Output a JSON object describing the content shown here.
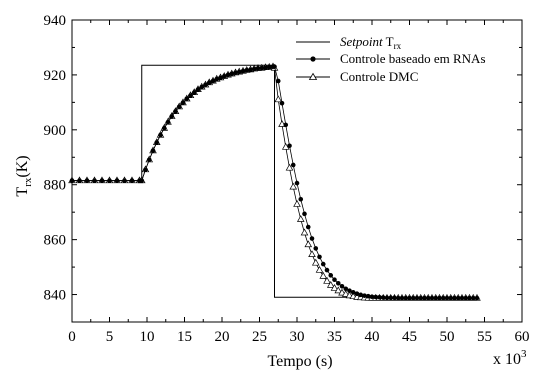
{
  "chart_data": {
    "type": "line",
    "xlabel": "Tempo (s)",
    "x_multiplier": "x 10",
    "x_multiplier_exp": "3",
    "ylabel_main": "T",
    "ylabel_sub": "rx",
    "ylabel_unit": "(K)",
    "xlim": [
      0,
      60
    ],
    "ylim": [
      830,
      940
    ],
    "xticks": [
      0,
      5,
      10,
      15,
      20,
      25,
      30,
      35,
      40,
      45,
      50,
      55,
      60
    ],
    "yticks": [
      840,
      860,
      880,
      900,
      920,
      940
    ],
    "grid": false,
    "legend_position": "top-right",
    "series": [
      {
        "name_italic": "Setpoint",
        "name_main": " T",
        "name_sub": "rx",
        "style": "solid-line",
        "x": [
          0,
          9.3,
          9.3,
          27.0,
          27.0,
          54
        ],
        "y": [
          881.5,
          881.5,
          923.5,
          923.5,
          839,
          839
        ]
      },
      {
        "name": "Controle baseado em RNAs",
        "style": "line-filled-circle",
        "x": [
          0,
          1,
          2,
          3,
          4,
          5,
          6,
          7,
          8,
          9,
          9.3,
          9.8,
          10.3,
          10.8,
          11.3,
          11.8,
          12.3,
          12.8,
          13.3,
          13.8,
          14.3,
          14.8,
          15.3,
          15.8,
          16.3,
          16.8,
          17.3,
          17.8,
          18.3,
          18.8,
          19.3,
          19.8,
          20.3,
          20.8,
          21.3,
          21.8,
          22.3,
          22.8,
          23.3,
          23.8,
          24.3,
          24.8,
          25.3,
          25.8,
          26.3,
          26.8,
          27.0,
          27.5,
          28.0,
          28.5,
          29.0,
          29.5,
          30.0,
          30.5,
          31.0,
          31.5,
          32.0,
          32.5,
          33.0,
          33.5,
          34.0,
          34.5,
          35.0,
          35.5,
          36.0,
          36.5,
          37.0,
          37.5,
          38.0,
          38.5,
          39.0,
          39.5,
          40.0,
          40.5,
          41.0,
          41.5,
          42.0,
          42.5,
          43.0,
          43.5,
          44.0,
          44.5,
          45.0,
          45.5,
          46.0,
          46.5,
          47.0,
          47.5,
          48.0,
          48.5,
          49.0,
          49.5,
          50.0,
          50.5,
          51.0,
          51.5,
          52.0,
          52.5,
          53.0,
          53.5,
          54.0
        ],
        "y": [
          881.5,
          881.5,
          881.5,
          881.5,
          881.5,
          881.5,
          881.5,
          881.5,
          881.5,
          881.5,
          881.5,
          885.5,
          889.1,
          892.4,
          895.4,
          898.1,
          900.6,
          902.8,
          904.9,
          906.7,
          908.4,
          909.9,
          911.3,
          912.5,
          913.6,
          914.7,
          915.6,
          916.4,
          917.2,
          917.8,
          918.5,
          919.0,
          919.5,
          920.0,
          920.4,
          920.8,
          921.1,
          921.4,
          921.7,
          921.9,
          922.2,
          922.4,
          922.5,
          922.7,
          922.8,
          923.0,
          923.0,
          917.8,
          909.7,
          901.8,
          894.2,
          887.2,
          880.6,
          874.7,
          869.4,
          864.6,
          860.4,
          856.8,
          853.7,
          851.1,
          848.9,
          847.0,
          845.4,
          844.1,
          843.0,
          842.1,
          841.4,
          840.8,
          840.3,
          839.9,
          839.6,
          839.4,
          839.2,
          839.1,
          839.0,
          838.9,
          838.8,
          838.8,
          838.8,
          838.7,
          838.7,
          838.7,
          838.7,
          838.7,
          838.7,
          838.7,
          838.7,
          838.7,
          838.7,
          838.7,
          838.7,
          838.7,
          838.7,
          838.7,
          838.7,
          838.7,
          838.7,
          838.7,
          838.7,
          838.7,
          838.7
        ]
      },
      {
        "name": "Controle DMC",
        "style": "line-open-triangle",
        "x": [
          0,
          1,
          2,
          3,
          4,
          5,
          6,
          7,
          8,
          9,
          9.3,
          9.8,
          10.3,
          10.8,
          11.3,
          11.8,
          12.3,
          12.8,
          13.3,
          13.8,
          14.3,
          14.8,
          15.3,
          15.8,
          16.3,
          16.8,
          17.3,
          17.8,
          18.3,
          18.8,
          19.3,
          19.8,
          20.3,
          20.8,
          21.3,
          21.8,
          22.3,
          22.8,
          23.3,
          23.8,
          24.3,
          24.8,
          25.3,
          25.8,
          26.3,
          26.8,
          27.0,
          27.5,
          28.0,
          28.5,
          29.0,
          29.5,
          30.0,
          30.5,
          31.0,
          31.5,
          32.0,
          32.5,
          33.0,
          33.5,
          34.0,
          34.5,
          35.0,
          35.5,
          36.0,
          36.5,
          37.0,
          37.5,
          38.0,
          38.5,
          39.0,
          39.5,
          40.0,
          40.5,
          41.0,
          41.5,
          42.0,
          42.5,
          43.0,
          43.5,
          44.0,
          44.5,
          45.0,
          45.5,
          46.0,
          46.5,
          47.0,
          47.5,
          48.0,
          48.5,
          49.0,
          49.5,
          50.0,
          50.5,
          51.0,
          51.5,
          52.0,
          52.5,
          53.0,
          53.5,
          54.0
        ],
        "y": [
          881.5,
          881.5,
          881.5,
          881.5,
          881.5,
          881.5,
          881.5,
          881.5,
          881.5,
          881.5,
          881.5,
          885.5,
          889.1,
          892.4,
          895.4,
          898.1,
          900.6,
          902.8,
          904.9,
          906.7,
          908.4,
          909.9,
          911.3,
          912.5,
          913.6,
          914.7,
          915.6,
          916.4,
          917.2,
          917.8,
          918.5,
          919.0,
          919.5,
          920.0,
          920.4,
          920.8,
          921.1,
          921.4,
          921.7,
          921.9,
          922.2,
          922.4,
          922.5,
          922.7,
          922.8,
          923.0,
          922.5,
          911.0,
          902.0,
          893.7,
          886.1,
          879.2,
          872.9,
          867.4,
          862.5,
          858.2,
          854.6,
          851.5,
          848.9,
          846.7,
          844.9,
          843.4,
          842.3,
          841.4,
          840.6,
          840.1,
          839.6,
          839.3,
          839.0,
          838.9,
          838.8,
          838.7,
          838.7,
          838.7,
          838.7,
          838.7,
          838.7,
          838.7,
          838.7,
          838.7,
          838.7,
          838.7,
          838.7,
          838.7,
          838.7,
          838.7,
          838.7,
          838.7,
          838.7,
          838.7,
          838.7,
          838.7,
          838.7,
          838.7,
          838.7,
          838.7,
          838.7,
          838.7,
          838.7,
          838.7,
          838.7
        ]
      }
    ]
  }
}
